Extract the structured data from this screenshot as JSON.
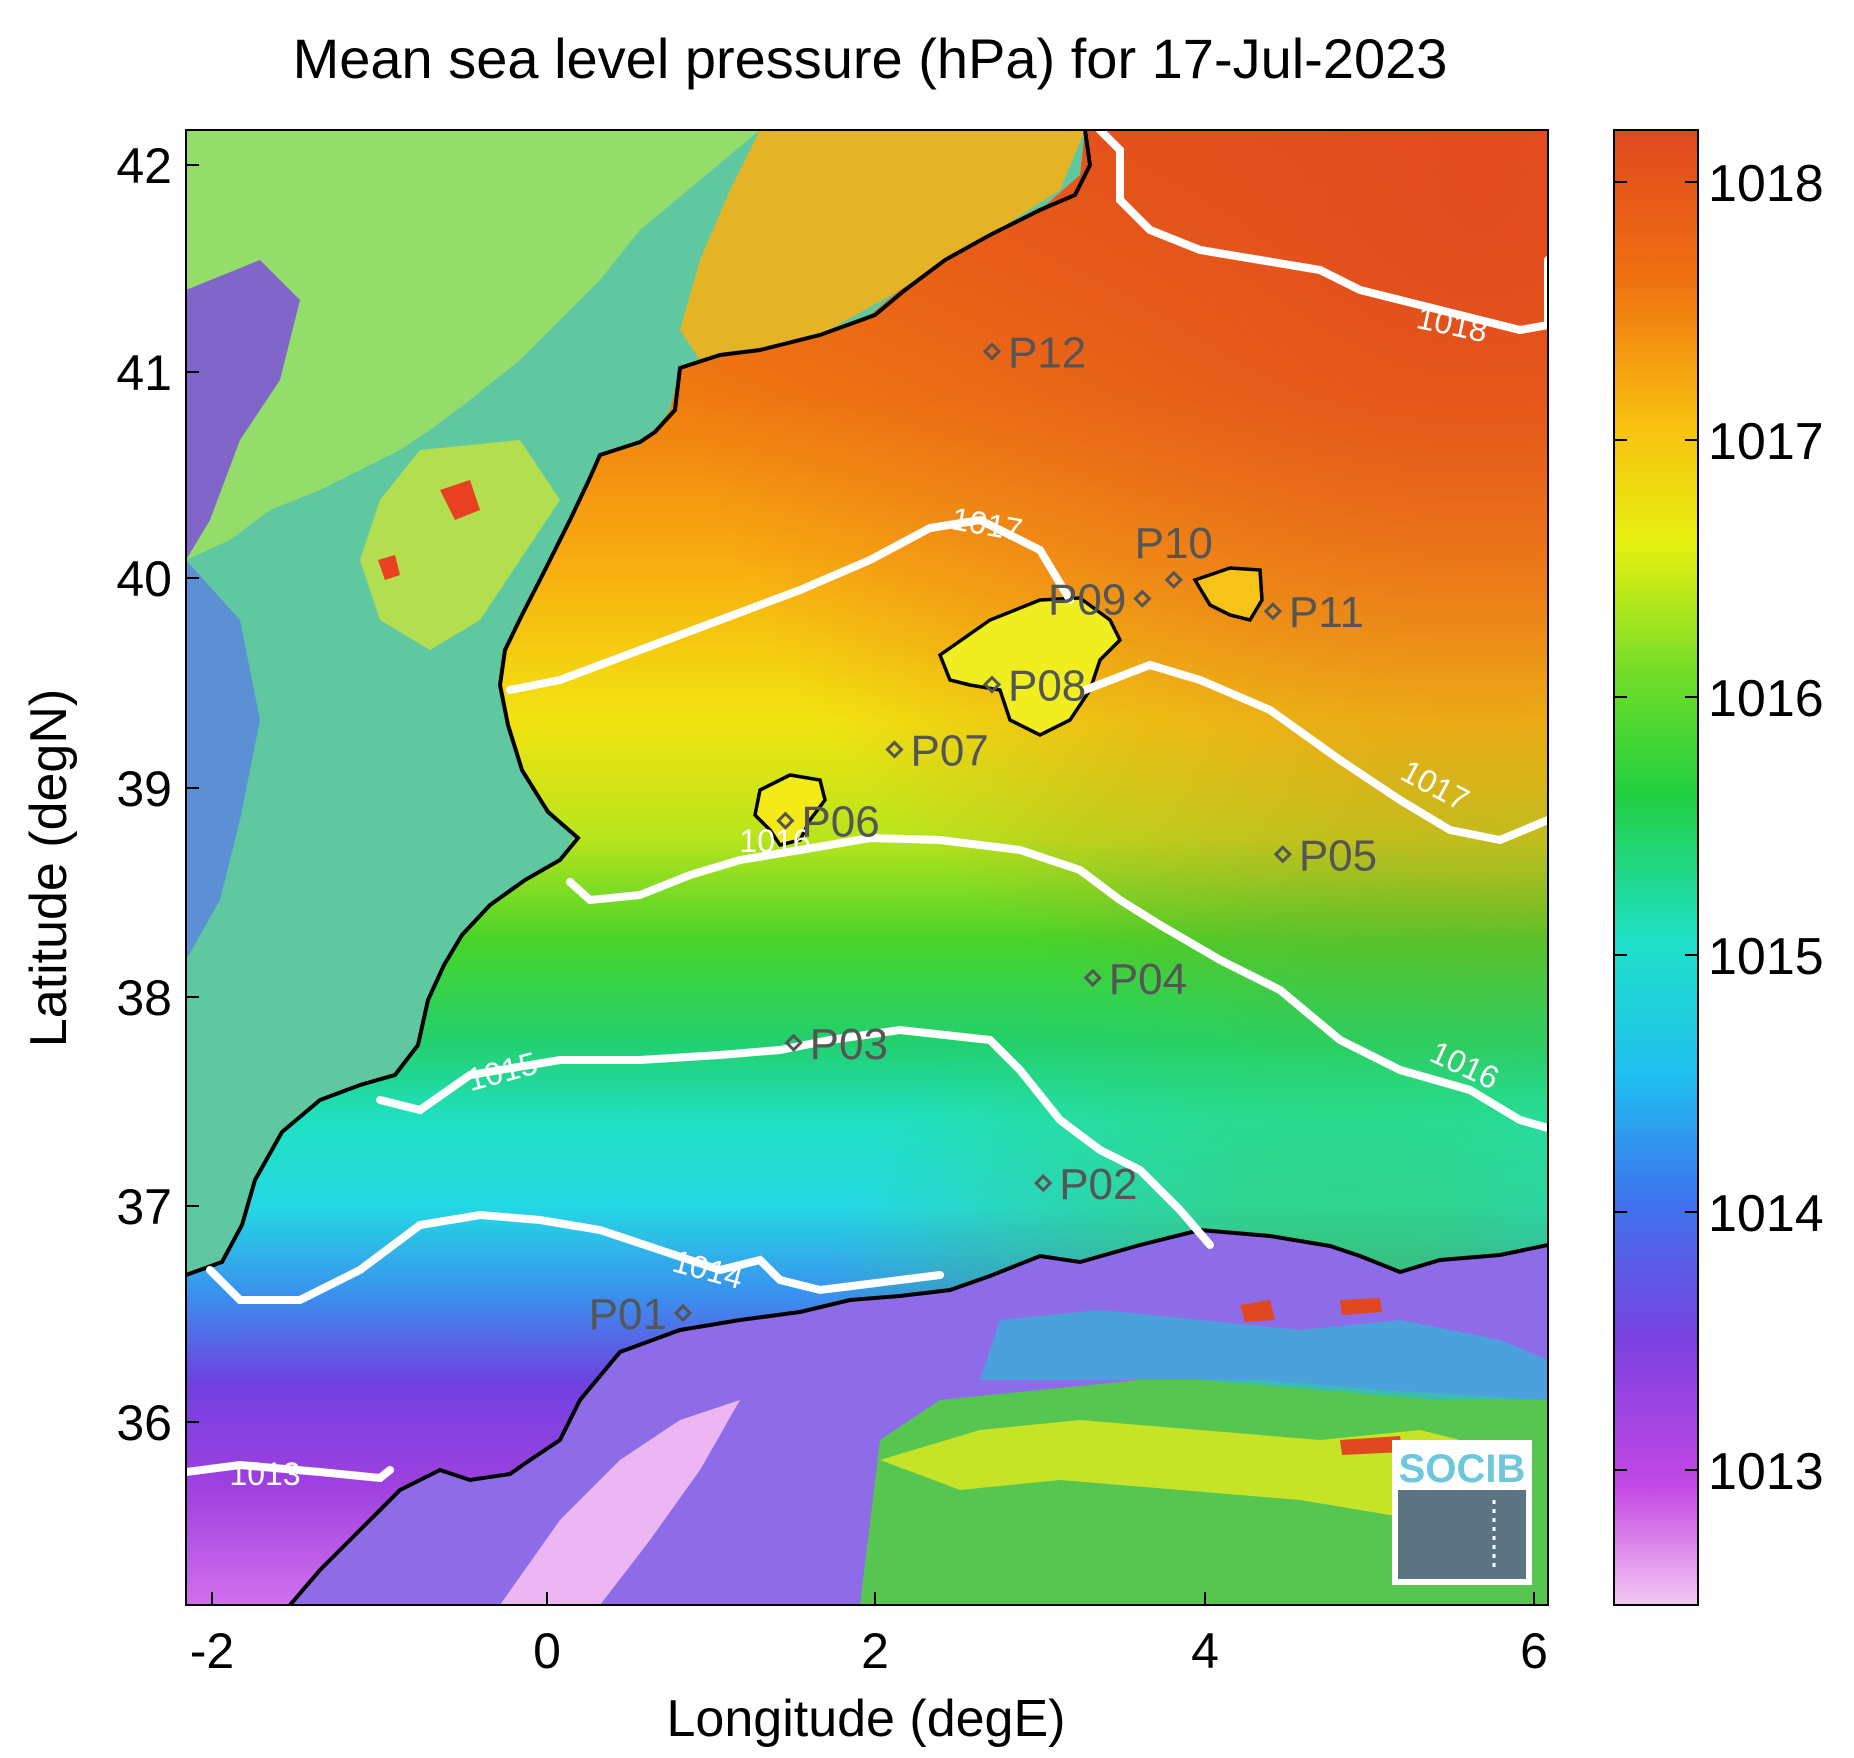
{
  "map": {
    "title": "Mean sea level pressure (hPa) for 17-Jul-2023",
    "xlabel": "Longitude (degE)",
    "ylabel": "Latitude (degN)",
    "x_ticks": [
      "-2",
      "0",
      "2",
      "4",
      "6"
    ],
    "y_ticks": [
      "42",
      "41",
      "40",
      "39",
      "38",
      "37",
      "36"
    ],
    "lon_range": [
      -2.2,
      6.1
    ],
    "lat_range": [
      35.1,
      42.2
    ]
  },
  "colorbar": {
    "ticks": [
      "1018",
      "1017",
      "1016",
      "1015",
      "1014",
      "1013"
    ],
    "range": [
      1012.5,
      1018.2
    ],
    "colors": [
      "#f2c0f2",
      "#c040e0",
      "#7040e0",
      "#2aa0f0",
      "#20e0d0",
      "#20d040",
      "#90e020",
      "#f0f010",
      "#f0a010",
      "#f06010",
      "#e04020"
    ]
  },
  "contours": {
    "labels": [
      "1013",
      "1014",
      "1015",
      "1016",
      "1017",
      "1016",
      "1017",
      "1018"
    ]
  },
  "stations": [
    {
      "name": "P01",
      "lon": 0.85,
      "lat": 36.52
    },
    {
      "name": "P02",
      "lon": 3.03,
      "lat": 37.14
    },
    {
      "name": "P03",
      "lon": 1.52,
      "lat": 37.81
    },
    {
      "name": "P04",
      "lon": 3.33,
      "lat": 38.12
    },
    {
      "name": "P05",
      "lon": 4.48,
      "lat": 38.71
    },
    {
      "name": "P06",
      "lon": 1.47,
      "lat": 38.87
    },
    {
      "name": "P07",
      "lon": 2.13,
      "lat": 39.21
    },
    {
      "name": "P08",
      "lon": 2.72,
      "lat": 39.52
    },
    {
      "name": "P09",
      "lon": 3.63,
      "lat": 39.93
    },
    {
      "name": "P10",
      "lon": 3.82,
      "lat": 40.02
    },
    {
      "name": "P11",
      "lon": 4.42,
      "lat": 39.87
    },
    {
      "name": "P12",
      "lon": 2.72,
      "lat": 41.11
    }
  ],
  "logo": {
    "text": "SOCIB"
  },
  "legend_colors": {
    "coast": "#000000",
    "contour": "#ffffff",
    "station": "#555555"
  }
}
